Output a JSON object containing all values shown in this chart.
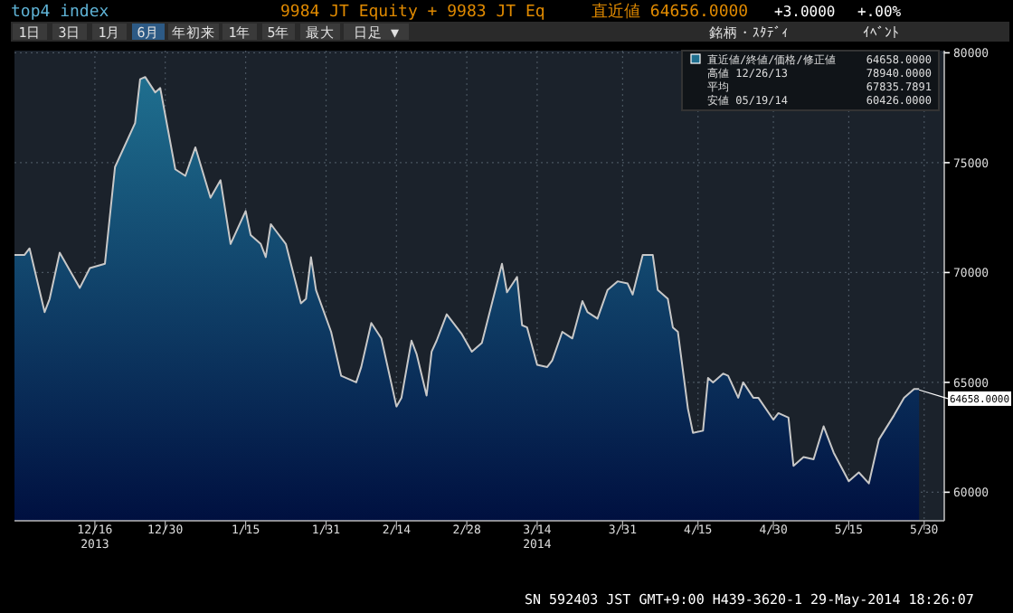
{
  "chart_data": {
    "type": "area",
    "title": "top4 index",
    "subtitle": "9984 JT Equity + 9983 JT Eq",
    "x": [
      "2013-11-30",
      "2013-12-02",
      "2013-12-03",
      "2013-12-06",
      "2013-12-07",
      "2013-12-09",
      "2013-12-11",
      "2013-12-13",
      "2013-12-15",
      "2013-12-18",
      "2013-12-20",
      "2013-12-24",
      "2013-12-25",
      "2013-12-26",
      "2013-12-28",
      "2013-12-29",
      "2014-01-01",
      "2014-01-03",
      "2014-01-05",
      "2014-01-08",
      "2014-01-10",
      "2014-01-12",
      "2014-01-15",
      "2014-01-16",
      "2014-01-18",
      "2014-01-19",
      "2014-01-20",
      "2014-01-21",
      "2014-01-23",
      "2014-01-26",
      "2014-01-27",
      "2014-01-28",
      "2014-01-29",
      "2014-02-01",
      "2014-02-03",
      "2014-02-06",
      "2014-02-07",
      "2014-02-09",
      "2014-02-11",
      "2014-02-14",
      "2014-02-15",
      "2014-02-17",
      "2014-02-18",
      "2014-02-20",
      "2014-02-21",
      "2014-02-22",
      "2014-02-24",
      "2014-02-27",
      "2014-03-01",
      "2014-03-03",
      "2014-03-07",
      "2014-03-08",
      "2014-03-10",
      "2014-03-11",
      "2014-03-12",
      "2014-03-14",
      "2014-03-16",
      "2014-03-17",
      "2014-03-19",
      "2014-03-21",
      "2014-03-23",
      "2014-03-24",
      "2014-03-26",
      "2014-03-28",
      "2014-03-30",
      "2014-04-01",
      "2014-04-02",
      "2014-04-03",
      "2014-04-04",
      "2014-04-06",
      "2014-04-07",
      "2014-04-09",
      "2014-04-10",
      "2014-04-11",
      "2014-04-13",
      "2014-04-14",
      "2014-04-16",
      "2014-04-17",
      "2014-04-18",
      "2014-04-20",
      "2014-04-21",
      "2014-04-23",
      "2014-04-24",
      "2014-04-26",
      "2014-04-27",
      "2014-04-30",
      "2014-05-01",
      "2014-05-03",
      "2014-05-04",
      "2014-05-06",
      "2014-05-08",
      "2014-05-10",
      "2014-05-12",
      "2014-05-15",
      "2014-05-17",
      "2014-05-19",
      "2014-05-21",
      "2014-05-24",
      "2014-05-26",
      "2014-05-28",
      "2014-05-29"
    ],
    "series": [
      {
        "name": "直近値/終値/価格/修正値",
        "color": "#1f6f8f",
        "values": [
          70800,
          70800,
          71100,
          68200,
          68800,
          70900,
          70100,
          69300,
          70200,
          70400,
          74800,
          76800,
          78800,
          78900,
          78200,
          78400,
          74700,
          74400,
          75700,
          73400,
          74200,
          71300,
          72800,
          71700,
          71300,
          70700,
          72200,
          71900,
          71300,
          68600,
          68800,
          70700,
          69200,
          67300,
          65300,
          65000,
          65700,
          67700,
          67000,
          63900,
          64300,
          66900,
          66300,
          64400,
          66400,
          66900,
          68100,
          67200,
          66400,
          66800,
          70400,
          69100,
          69800,
          67600,
          67500,
          65800,
          65700,
          66000,
          67300,
          67000,
          68700,
          68200,
          67900,
          69200,
          69600,
          69500,
          69000,
          69900,
          70800,
          70800,
          69200,
          68800,
          67500,
          67300,
          63800,
          62700,
          62800,
          65200,
          65000,
          65400,
          65300,
          64300,
          65000,
          64300,
          64300,
          63300,
          63600,
          63400,
          61200,
          61600,
          61500,
          63000,
          61800,
          60500,
          60900,
          60400,
          62400,
          63500,
          64300,
          64700,
          64700
        ]
      }
    ],
    "xlim": [
      "2013-11-30",
      "2014-06-03"
    ],
    "xticks": [
      {
        "value": "2013-12-16",
        "label": "12/16"
      },
      {
        "value": "2013-12-30",
        "label": "12/30"
      },
      {
        "value": "2014-01-15",
        "label": "1/15"
      },
      {
        "value": "2014-01-31",
        "label": "1/31"
      },
      {
        "value": "2014-02-14",
        "label": "2/14"
      },
      {
        "value": "2014-02-28",
        "label": "2/28"
      },
      {
        "value": "2014-03-14",
        "label": "3/14"
      },
      {
        "value": "2014-03-31",
        "label": "3/31"
      },
      {
        "value": "2014-04-15",
        "label": "4/15"
      },
      {
        "value": "2014-04-30",
        "label": "4/30"
      },
      {
        "value": "2014-05-15",
        "label": "5/15"
      },
      {
        "value": "2014-05-30",
        "label": "5/30"
      }
    ],
    "ylim": [
      58700,
      80100
    ],
    "yticks": [
      60000,
      65000,
      70000,
      75000,
      80000
    ],
    "grid": true,
    "legend": "top right",
    "annotations": [
      "直近値 64656.0000",
      "+3.0000",
      "+.00%",
      "1日",
      "3日",
      "1月",
      "6月",
      "年初来",
      "1年",
      "5年",
      "最大",
      "日足 ▼",
      "銘柄・ｽﾀﾃﾞｨ",
      "ｲﾍﾞﾝﾄ",
      "64658.0000",
      "高値 12/26/13",
      "78940.0000",
      "平均",
      "67835.7891",
      "安値 05/19/14",
      "60426.0000",
      {
        "text": "64658.0000",
        "x": "2014-05-29",
        "y": 64658
      },
      "2013",
      "2014",
      "SN 592403 JST GMT+9:00 H439-3620-1 29-May-2014 18:26:07"
    ]
  }
}
